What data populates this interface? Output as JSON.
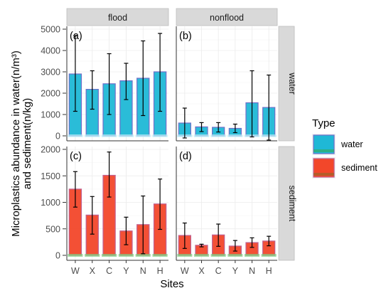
{
  "chart_data": {
    "type": "bar",
    "ylabel_line1": "Microplastics abundance in water(n/m³)",
    "ylabel_line2": "and sediment(n/kg)",
    "xlabel": "Sites",
    "categories": [
      "W",
      "X",
      "C",
      "Y",
      "N",
      "H"
    ],
    "legend": {
      "title": "Type",
      "placement": "right",
      "entries": [
        {
          "label": "water",
          "color": "#1FB8D6"
        },
        {
          "label": "sediment",
          "color": "#F2472A"
        }
      ]
    },
    "columns": [
      "flood",
      "nonflood"
    ],
    "rows": [
      {
        "name": "water",
        "ylim": [
          0,
          5000
        ],
        "yticks": [
          0,
          1000,
          2000,
          3000,
          4000,
          5000
        ],
        "panels": [
          {
            "tag": "(a)",
            "series": "water",
            "values": [
              2900,
              2180,
              2440,
              2580,
              2700,
              3000
            ],
            "err_low": [
              1150,
              1250,
              1000,
              1700,
              950,
              1150
            ],
            "err_high": [
              4700,
              3050,
              3850,
              3400,
              4450,
              4800
            ]
          },
          {
            "tag": "(b)",
            "series": "water",
            "values": [
              600,
              420,
              400,
              350,
              1550,
              1330
            ],
            "err_low": [
              -100,
              200,
              180,
              150,
              -50,
              -200
            ],
            "err_high": [
              1300,
              620,
              620,
              550,
              3050,
              2850
            ]
          }
        ]
      },
      {
        "name": "sediment",
        "ylim": [
          0,
          2000
        ],
        "yticks": [
          0,
          500,
          1000,
          1500,
          2000
        ],
        "panels": [
          {
            "tag": "(c)",
            "series": "sediment",
            "values": [
              1250,
              760,
              1510,
              460,
              580,
              970
            ],
            "err_low": [
              910,
              400,
              1100,
              200,
              30,
              490
            ],
            "err_high": [
              1580,
              1110,
              1950,
              720,
              1120,
              1440
            ]
          },
          {
            "tag": "(d)",
            "series": "sediment",
            "values": [
              375,
              190,
              385,
              175,
              240,
              270
            ],
            "err_low": [
              130,
              160,
              170,
              80,
              150,
              180
            ],
            "err_high": [
              610,
              210,
              590,
              280,
              330,
              360
            ]
          }
        ]
      }
    ],
    "grid": true,
    "colors": {
      "water_fill": "#1FB8D6",
      "water_edge": "#6F6FC9",
      "sediment_fill": "#F2472A",
      "sediment_edge": "#C06090",
      "base_tint": "#BFF0F8",
      "panel_bg": "#FFFFFF",
      "strip_bg": "#D9D9D9",
      "grid": "#EBEBEB",
      "axis_text": "#4D4D4D"
    }
  }
}
